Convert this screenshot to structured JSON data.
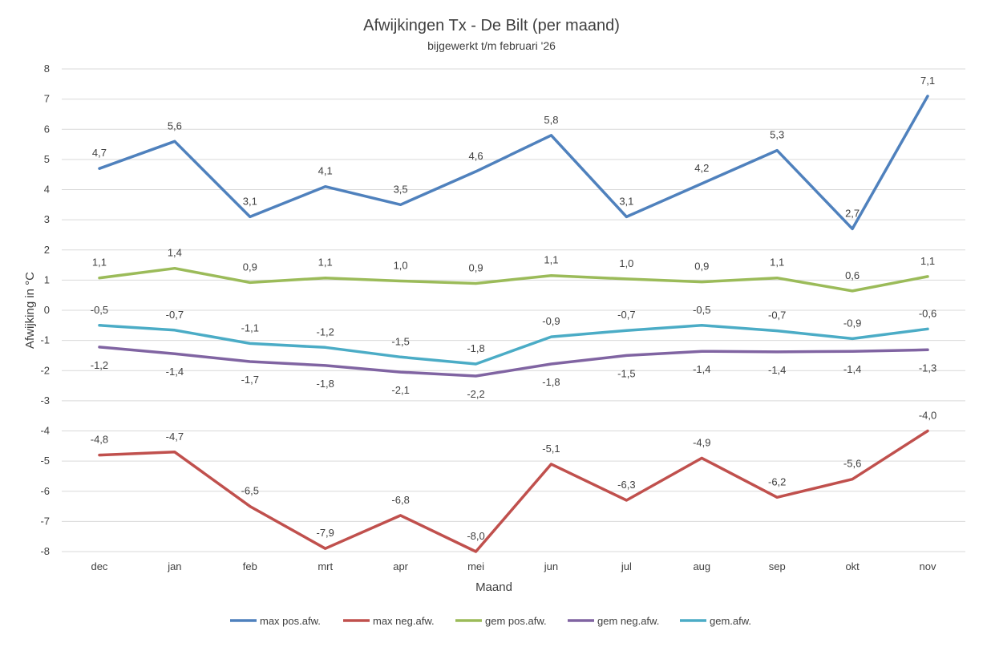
{
  "chart_data": {
    "type": "line",
    "title": "Afwijkingen Tx - De Bilt (per maand)",
    "subtitle": "bijgewerkt t/m februari '26",
    "xlabel": "Maand",
    "ylabel": "Afwijking in °C",
    "ylim": [
      -8,
      8
    ],
    "ytick_labels": [
      "8",
      "7",
      "6",
      "5",
      "4",
      "3",
      "2",
      "1",
      "0",
      "-1",
      "-2",
      "-3",
      "-4",
      "-5",
      "-6",
      "-7",
      "-8"
    ],
    "grid": true,
    "legend_position": "bottom",
    "categories": [
      "dec",
      "jan",
      "feb",
      "mrt",
      "apr",
      "mei",
      "jun",
      "jul",
      "aug",
      "sep",
      "okt",
      "nov"
    ],
    "series": [
      {
        "name": "max pos.afw.",
        "color": "#4f81bd",
        "values": [
          4.7,
          5.6,
          3.1,
          4.1,
          3.5,
          4.6,
          5.8,
          3.1,
          4.2,
          5.3,
          2.7,
          7.1
        ],
        "labels": [
          "4,7",
          "5,6",
          "3,1",
          "4,1",
          "3,5",
          "4,6",
          "5,8",
          "3,1",
          "4,2",
          "5,3",
          "2,7",
          "7,1"
        ],
        "label_position": "above"
      },
      {
        "name": "max neg.afw.",
        "color": "#c0504d",
        "values": [
          -4.8,
          -4.7,
          -6.5,
          -7.9,
          -6.8,
          -8.0,
          -5.1,
          -6.3,
          -4.9,
          -6.2,
          -5.6,
          -4.0
        ],
        "labels": [
          "-4,8",
          "-4,7",
          "-6,5",
          "-7,9",
          "-6,8",
          "-8,0",
          "-5,1",
          "-6,3",
          "-4,9",
          "-6,2",
          "-5,6",
          "-4,0"
        ],
        "label_position": "above"
      },
      {
        "name": "gem pos.afw.",
        "color": "#9bbb59",
        "values": [
          1.07,
          1.39,
          0.92,
          1.07,
          0.97,
          0.89,
          1.15,
          1.04,
          0.94,
          1.07,
          0.64,
          1.12
        ],
        "labels": [
          "1,1",
          "1,4",
          "0,9",
          "1,1",
          "1,0",
          "0,9",
          "1,1",
          "1,0",
          "0,9",
          "1,1",
          "0,6",
          "1,1"
        ],
        "label_position": "above"
      },
      {
        "name": "gem neg.afw.",
        "color": "#8064a2",
        "values": [
          -1.22,
          -1.44,
          -1.7,
          -1.83,
          -2.05,
          -2.18,
          -1.78,
          -1.5,
          -1.36,
          -1.38,
          -1.36,
          -1.31
        ],
        "labels": [
          "-1,2",
          "-1,4",
          "-1,7",
          "-1,8",
          "-2,1",
          "-2,2",
          "-1,8",
          "-1,5",
          "-1,4",
          "-1,4",
          "-1,4",
          "-1,3"
        ],
        "label_position": "below"
      },
      {
        "name": "gem.afw.",
        "color": "#4bacc6",
        "values": [
          -0.5,
          -0.66,
          -1.1,
          -1.23,
          -1.55,
          -1.78,
          -0.88,
          -0.67,
          -0.5,
          -0.68,
          -0.94,
          -0.62
        ],
        "labels": [
          "-0,5",
          "-0,7",
          "-1,1",
          "-1,2",
          "-1,5",
          "-1,8",
          "-0,9",
          "-0,7",
          "-0,5",
          "-0,7",
          "-0,9",
          "-0,6"
        ],
        "label_position": "above"
      }
    ]
  }
}
